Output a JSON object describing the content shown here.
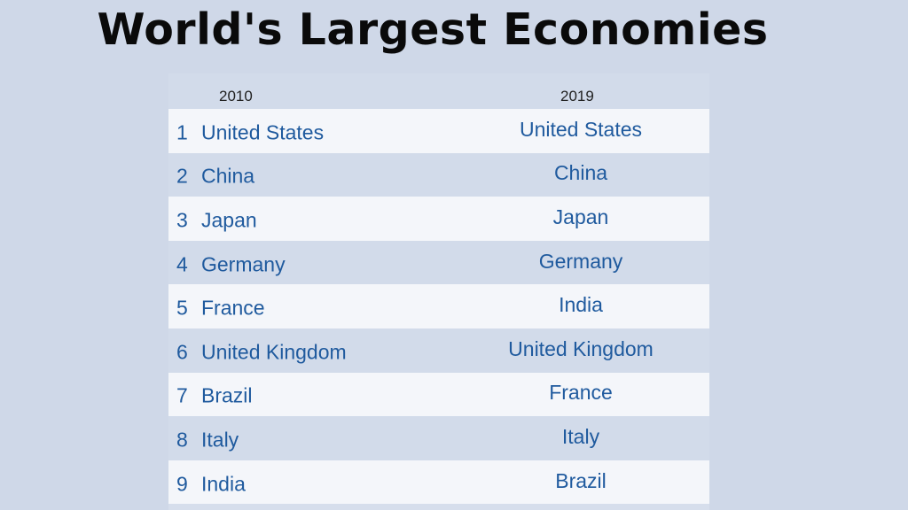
{
  "title": "World's Largest Economies",
  "table": {
    "headers": [
      "2010",
      "2019"
    ],
    "rows": [
      {
        "rank": "1",
        "y2010": "United States",
        "y2019": "United States"
      },
      {
        "rank": "2",
        "y2010": "China",
        "y2019": "China"
      },
      {
        "rank": "3",
        "y2010": "Japan",
        "y2019": "Japan"
      },
      {
        "rank": "4",
        "y2010": "Germany",
        "y2019": "Germany"
      },
      {
        "rank": "5",
        "y2010": "France",
        "y2019": "India"
      },
      {
        "rank": "6",
        "y2010": "United Kingdom",
        "y2019": "United Kingdom"
      },
      {
        "rank": "7",
        "y2010": "Brazil",
        "y2019": "France"
      },
      {
        "rank": "8",
        "y2010": "Italy",
        "y2019": "Italy"
      },
      {
        "rank": "9",
        "y2010": "India",
        "y2019": "Brazil"
      }
    ]
  },
  "colors": {
    "background": "#cfd8e8",
    "text_blue": "#1f5a9e",
    "row_light": "#f4f6fa",
    "row_dark": "#d2dbea"
  }
}
